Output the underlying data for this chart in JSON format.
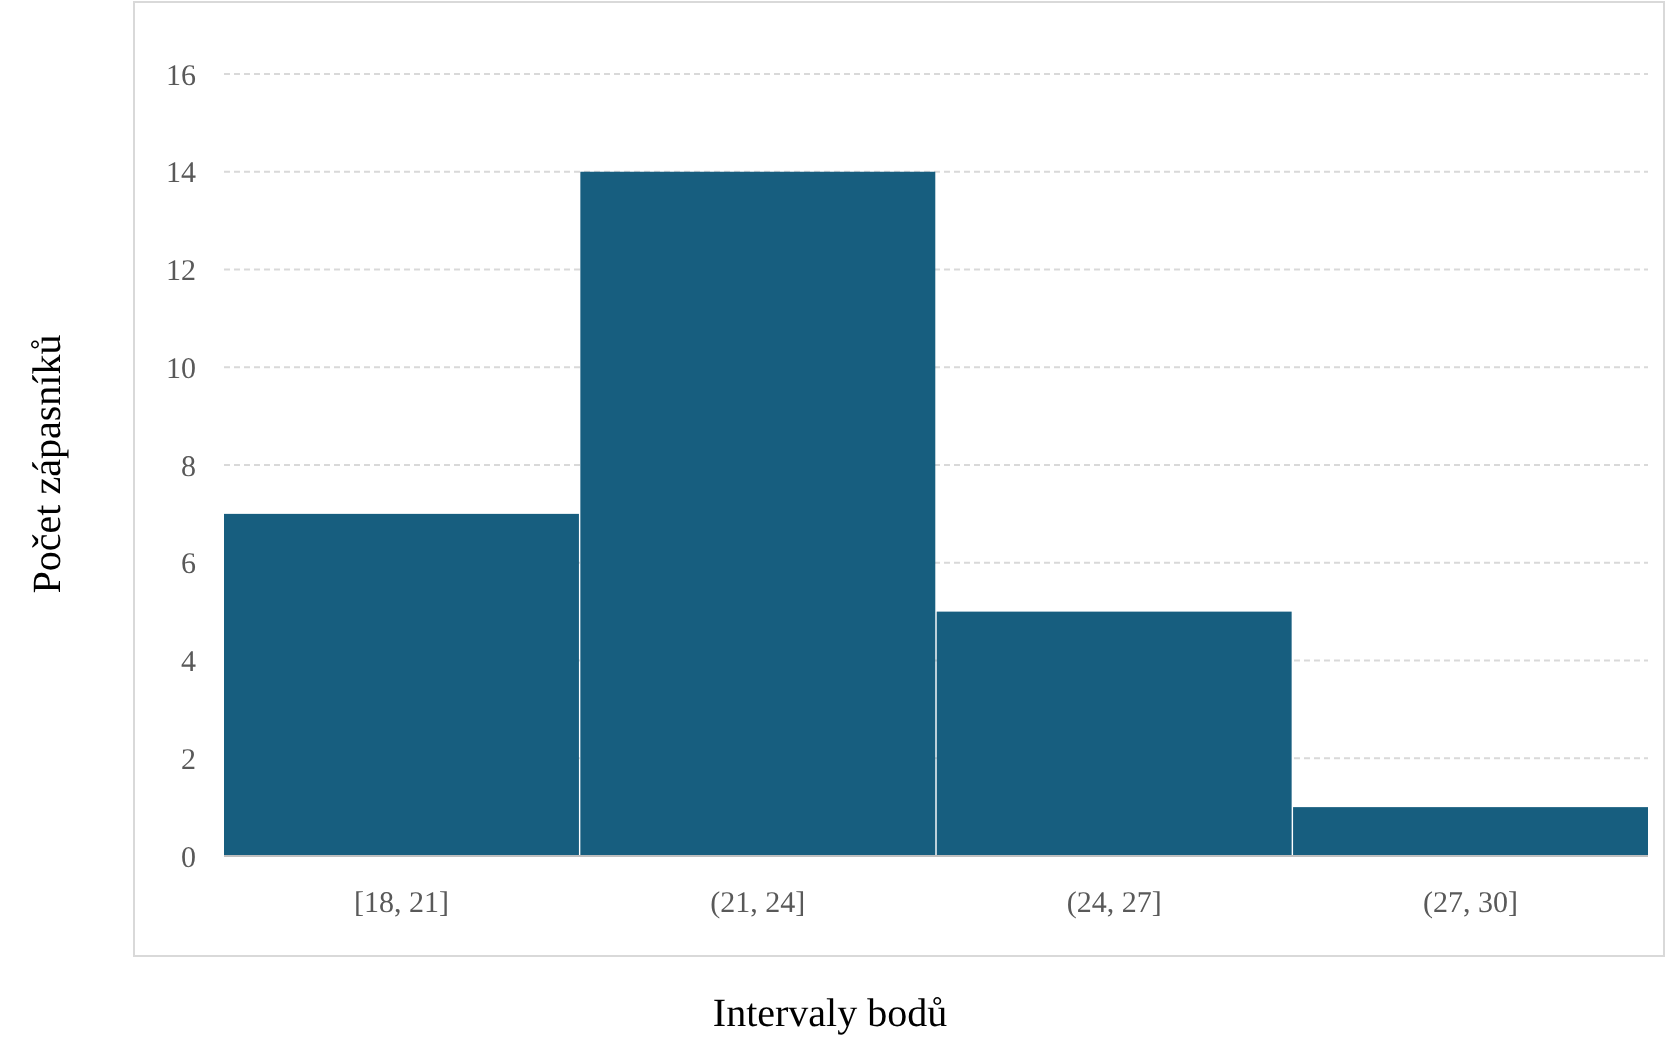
{
  "chart_data": {
    "type": "bar",
    "xlabel": "Intervaly bodů",
    "ylabel": "Počet zápasníků",
    "categories": [
      "[18, 21]",
      "(21, 24]",
      "(24, 27]",
      "(27, 30]"
    ],
    "values": [
      7,
      14,
      5,
      1
    ],
    "color": "#175e7f",
    "ylim": [
      0,
      16
    ],
    "yticks": [
      0,
      2,
      4,
      6,
      8,
      10,
      12,
      14,
      16
    ],
    "grid": "y"
  }
}
